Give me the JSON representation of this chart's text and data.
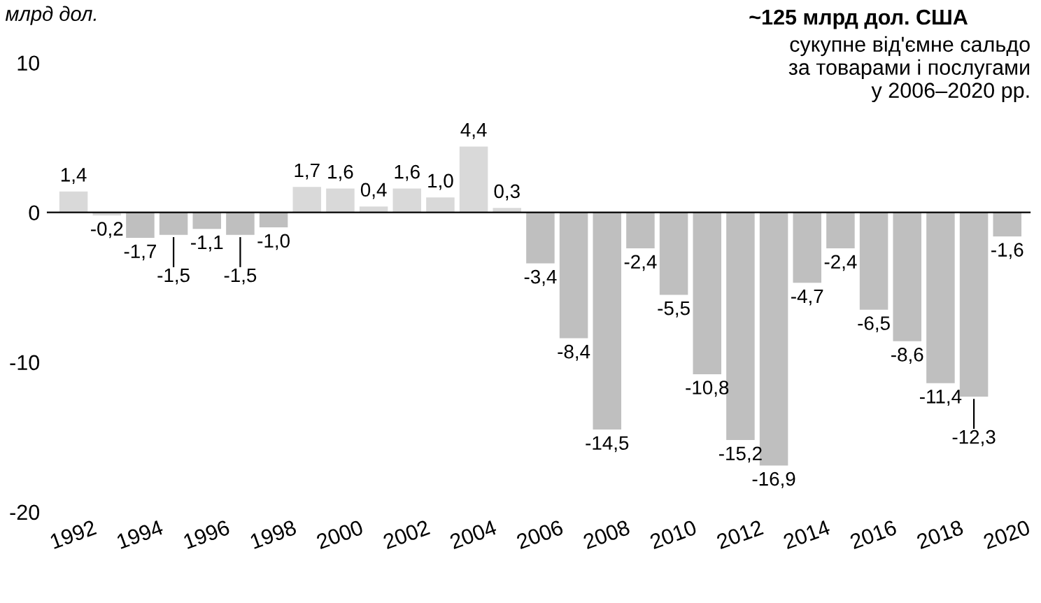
{
  "chart_data": {
    "type": "bar",
    "ylabel": "млрд дол.",
    "categories": [
      "1992",
      null,
      "1994",
      null,
      "1996",
      null,
      "1998",
      null,
      "2000",
      null,
      "2002",
      null,
      "2004",
      null,
      "2006",
      null,
      "2008",
      null,
      "2010",
      null,
      "2012",
      null,
      "2014",
      null,
      "2016",
      null,
      "2018",
      null,
      "2020"
    ],
    "values": [
      1.4,
      -0.2,
      -1.7,
      -1.5,
      -1.1,
      -1.5,
      -1.0,
      1.7,
      1.6,
      0.4,
      1.6,
      1.0,
      4.4,
      0.3,
      -3.4,
      -8.4,
      -14.5,
      -2.4,
      -5.5,
      -10.8,
      -15.2,
      -16.9,
      -4.7,
      -2.4,
      -6.5,
      -8.6,
      -11.4,
      -12.3,
      -1.6
    ],
    "value_labels": [
      "1,4",
      "-0,2",
      "-1,7",
      "-1,5",
      "-1,1",
      "-1,5",
      "-1,0",
      "1,7",
      "1,6",
      "0,4",
      "1,6",
      "1,0",
      "4,4",
      "0,3",
      "-3,4",
      "-8,4",
      "-14,5",
      "-2,4",
      "-5,5",
      "-10,8",
      "-15,2",
      "-16,9",
      "-4,7",
      "-2,4",
      "-6,5",
      "-8,6",
      "-11,4",
      "-12,3",
      "-1,6"
    ],
    "colors": [
      "#d9d9d9",
      "#d9d9d9",
      "#bfbfbf",
      "#bfbfbf",
      "#bfbfbf",
      "#bfbfbf",
      "#bfbfbf",
      "#d9d9d9",
      "#d9d9d9",
      "#d9d9d9",
      "#d9d9d9",
      "#d9d9d9",
      "#d9d9d9",
      "#d9d9d9",
      "#bfbfbf",
      "#bfbfbf",
      "#bfbfbf",
      "#bfbfbf",
      "#bfbfbf",
      "#bfbfbf",
      "#bfbfbf",
      "#bfbfbf",
      "#bfbfbf",
      "#bfbfbf",
      "#bfbfbf",
      "#bfbfbf",
      "#bfbfbf",
      "#bfbfbf",
      "#bfbfbf"
    ],
    "ylim": [
      -20,
      10
    ],
    "yticks": [
      10,
      0,
      -10,
      -20
    ],
    "annotations": [
      "~125 млрд дол. США",
      "сукупне від'ємне сальдо\nза товарами і послугами\nу 2006–2020 рр."
    ]
  }
}
